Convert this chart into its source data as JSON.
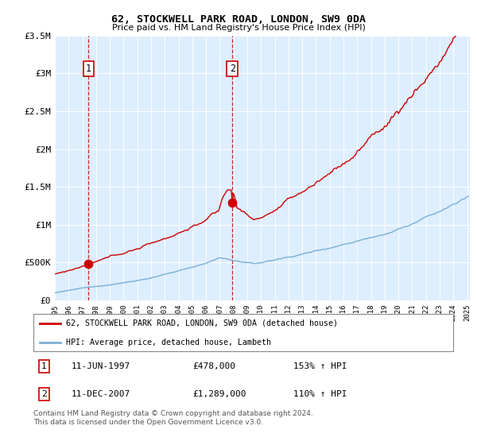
{
  "title": "62, STOCKWELL PARK ROAD, LONDON, SW9 0DA",
  "subtitle": "Price paid vs. HM Land Registry's House Price Index (HPI)",
  "sale1_year": 1997.458,
  "sale1_price": 478000,
  "sale1_label": "1",
  "sale2_year": 2007.917,
  "sale2_price": 1289000,
  "sale2_label": "2",
  "ylim_max": 3500000,
  "red_color": "#cc0000",
  "blue_color": "#7aafd4",
  "shade_color": "#ddeeff",
  "annotation_table": [
    {
      "num": "1",
      "date": "11-JUN-1997",
      "price": "£478,000",
      "hpi": "153% ↑ HPI"
    },
    {
      "num": "2",
      "date": "11-DEC-2007",
      "price": "£1,289,000",
      "hpi": "110% ↑ HPI"
    }
  ],
  "legend_entries": [
    {
      "label": "62, STOCKWELL PARK ROAD, LONDON, SW9 0DA (detached house)",
      "color": "#cc0000"
    },
    {
      "label": "HPI: Average price, detached house, Lambeth",
      "color": "#7aafd4"
    }
  ],
  "footer": "Contains HM Land Registry data © Crown copyright and database right 2024.\nThis data is licensed under the Open Government Licence v3.0."
}
